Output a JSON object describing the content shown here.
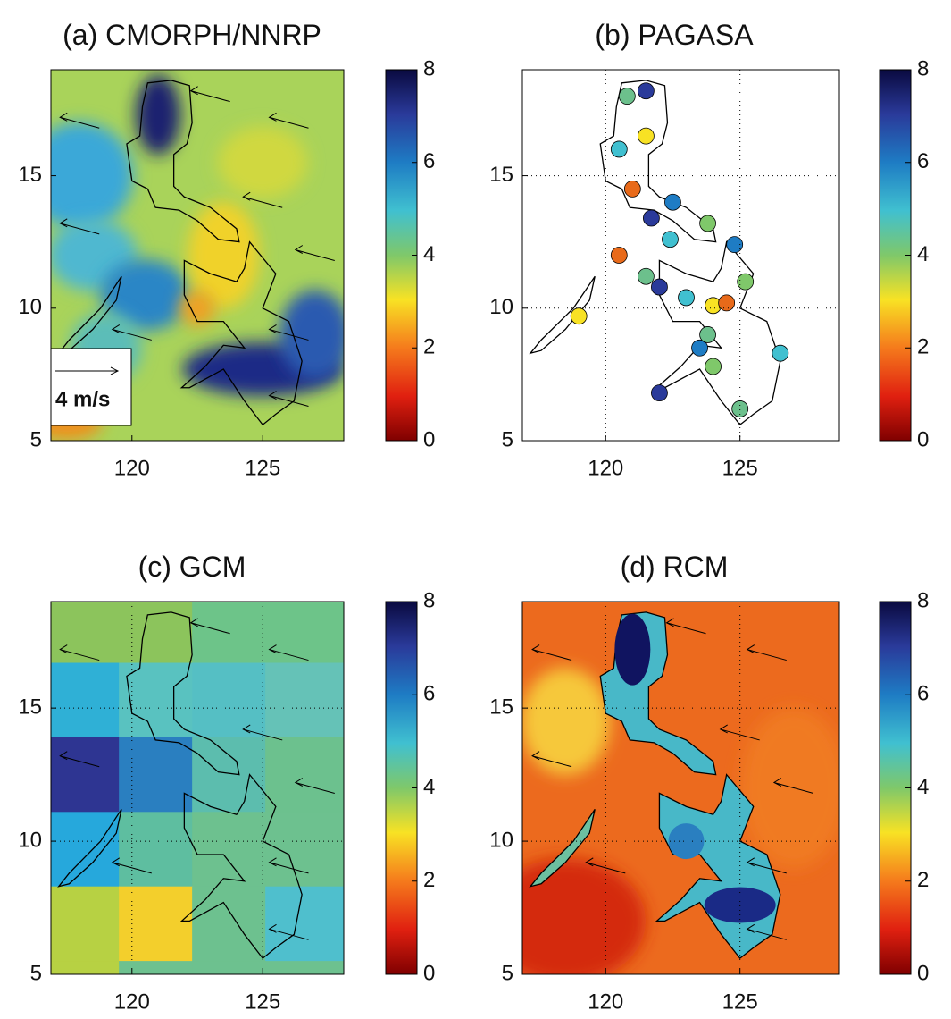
{
  "panels": [
    {
      "title": "(a) CMORPH/NNRP",
      "xlim": [
        116.9,
        128.1
      ],
      "ylim": [
        5,
        19
      ],
      "xticks": [
        120,
        125
      ],
      "yticks": [
        5,
        10,
        15
      ],
      "grid": false,
      "clim": [
        0,
        8
      ],
      "cticks": [
        0,
        2,
        4,
        6,
        8
      ],
      "annotation": "4 m/s"
    },
    {
      "title": "(b) PAGASA",
      "xlim": [
        116.9,
        128.7
      ],
      "ylim": [
        5,
        19
      ],
      "xticks": [
        120,
        125
      ],
      "yticks": [
        5,
        10,
        15
      ],
      "grid": true,
      "clim": [
        0,
        8
      ],
      "cticks": [
        0,
        2,
        4,
        6,
        8
      ]
    },
    {
      "title": "(c) GCM",
      "xlim": [
        116.9,
        128.1
      ],
      "ylim": [
        5,
        19
      ],
      "xticks": [
        120,
        125
      ],
      "yticks": [
        5,
        10,
        15
      ],
      "grid": true,
      "clim": [
        0,
        8
      ],
      "cticks": [
        0,
        2,
        4,
        6,
        8
      ]
    },
    {
      "title": "(d) RCM",
      "xlim": [
        116.9,
        128.7
      ],
      "ylim": [
        5,
        19
      ],
      "xticks": [
        120,
        125
      ],
      "yticks": [
        5,
        10,
        15
      ],
      "grid": true,
      "clim": [
        0,
        8
      ],
      "cticks": [
        0,
        2,
        4,
        6,
        8
      ]
    }
  ]
}
